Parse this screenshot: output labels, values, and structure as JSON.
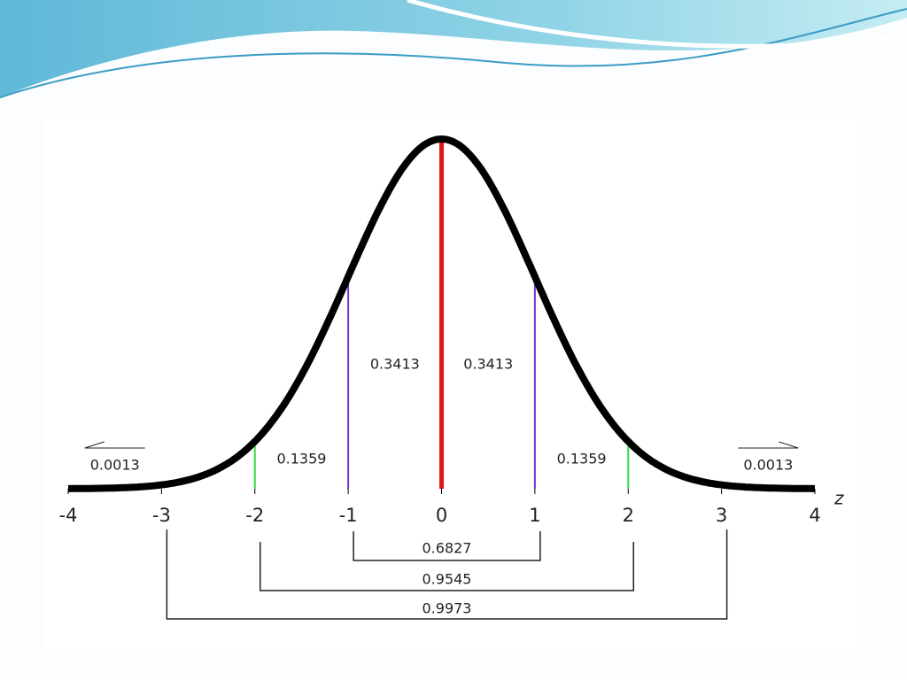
{
  "chart_data": {
    "type": "normal",
    "x_label": "z",
    "xlim": [
      -4,
      4
    ],
    "xticks": [
      -4,
      -3,
      -2,
      -1,
      0,
      1,
      2,
      3,
      4
    ],
    "areas": [
      {
        "from": -1,
        "to": 0,
        "value": 0.3413
      },
      {
        "from": 0,
        "to": 1,
        "value": 0.3413
      },
      {
        "from": -2,
        "to": -1,
        "value": 0.1359
      },
      {
        "from": 1,
        "to": 2,
        "value": 0.1359
      },
      {
        "from": -4,
        "to": -3,
        "value": 0.0013
      },
      {
        "from": 3,
        "to": 4,
        "value": 0.0013
      }
    ],
    "ranges": [
      {
        "from": -1,
        "to": 1,
        "value": 0.6827
      },
      {
        "from": -2,
        "to": 2,
        "value": 0.9545
      },
      {
        "from": -3,
        "to": 3,
        "value": 0.9973
      }
    ]
  }
}
